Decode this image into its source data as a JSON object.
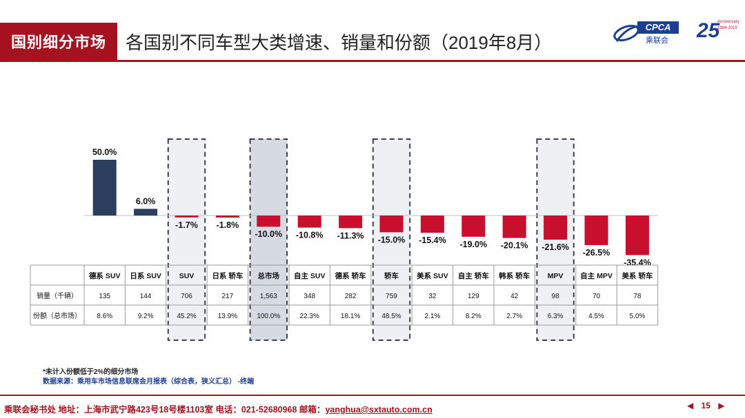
{
  "header": {
    "section_tag": "国别细分市场",
    "title": "各国别不同车型大类增速、销量和份额（2019年8月）",
    "logo_text": "CPCA",
    "logo_sub": "乘联会",
    "anniv_num": "25",
    "anniv_small_1": "Anniversary",
    "anniv_small_2": "1994-2019"
  },
  "chart_data": {
    "type": "bar",
    "title": "各国别不同车型大类增速、销量和份额（2019年8月）",
    "categories": [
      "德系 SUV",
      "日系 SUV",
      "SUV",
      "日系 轿车",
      "总市场",
      "自主 SUV",
      "德系 轿车",
      "轿车",
      "美系 SUV",
      "自主 轿车",
      "韩系 轿车",
      "MPV",
      "自主 MPV",
      "美系 轿车"
    ],
    "values": [
      50.0,
      6.0,
      -1.7,
      -1.8,
      -10.0,
      -10.8,
      -11.3,
      -15.0,
      -15.4,
      -19.0,
      -20.1,
      -21.6,
      -26.5,
      -35.4
    ],
    "value_labels": [
      "50.0%",
      "6.0%",
      "-1.7%",
      "-1.8%",
      "-10.0%",
      "-10.8%",
      "-11.3%",
      "-15.0%",
      "-15.4%",
      "-19.0%",
      "-20.1%",
      "-21.6%",
      "-26.5%",
      "-35.4%"
    ],
    "highlighted": [
      "SUV",
      "总市场",
      "轿车",
      "MPV"
    ],
    "ylim": [
      -35.4,
      50.0
    ],
    "positive_color": "#2b3e5e",
    "negative_color": "#c8102e",
    "highlight_fill": "#eef0f4",
    "highlight_fill_total": "#d6dae3"
  },
  "table": {
    "rows": [
      {
        "label": "销量（千辆）",
        "values": [
          "135",
          "144",
          "706",
          "217",
          "1,563",
          "348",
          "282",
          "759",
          "32",
          "129",
          "42",
          "98",
          "70",
          "78"
        ]
      },
      {
        "label": "份额（总市场）",
        "values": [
          "8.6%",
          "9.2%",
          "45.2%",
          "13.9%",
          "100.0%",
          "22.3%",
          "18.1%",
          "48.5%",
          "2.1%",
          "8.2%",
          "2.7%",
          "6.3%",
          "4.5%",
          "5.0%"
        ]
      }
    ]
  },
  "notes": {
    "note": "*未计入份额低于2%的细分市场",
    "source": "数据来源：乘用车市场信息联席会月报表（综合表，狭义汇总） -终端"
  },
  "footer": {
    "text": "乘联会秘书处   地址：上海市武宁路423号18号楼1103室   电话：021-52680968   邮箱：",
    "email": "yanghua@sxtauto.com.cn",
    "page": "15",
    "prev_icon": "◀",
    "next_icon": "▶"
  }
}
